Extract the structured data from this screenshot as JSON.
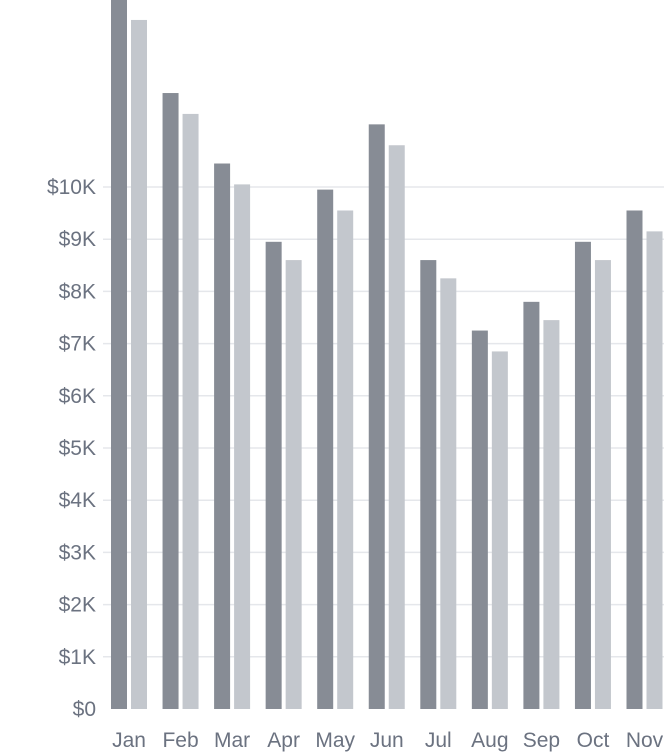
{
  "chart_data": {
    "type": "bar",
    "title": "",
    "xlabel": "",
    "ylabel": "",
    "categories": [
      "Jan",
      "Feb",
      "Mar",
      "Apr",
      "May",
      "Jun",
      "Jul",
      "Aug",
      "Sep",
      "Oct",
      "Nov"
    ],
    "series": [
      {
        "values": [
          13600,
          11800,
          10450,
          8950,
          9950,
          11200,
          8600,
          7250,
          7800,
          8950,
          9550
        ],
        "color": "#878c95"
      },
      {
        "values": [
          13200,
          11400,
          10050,
          8600,
          9550,
          10800,
          8250,
          6850,
          7450,
          8600,
          9150
        ],
        "color": "#c3c7cd"
      }
    ],
    "ylim": [
      0,
      13600
    ],
    "yticks": [
      0,
      1000,
      2000,
      3000,
      4000,
      5000,
      6000,
      7000,
      8000,
      9000,
      10000
    ],
    "ytick_labels": [
      "$0",
      "$1K",
      "$2K",
      "$3K",
      "$4K",
      "$5K",
      "$6K",
      "$7K",
      "$8K",
      "$9K",
      "$10K"
    ],
    "grid": true,
    "legend": "none"
  }
}
